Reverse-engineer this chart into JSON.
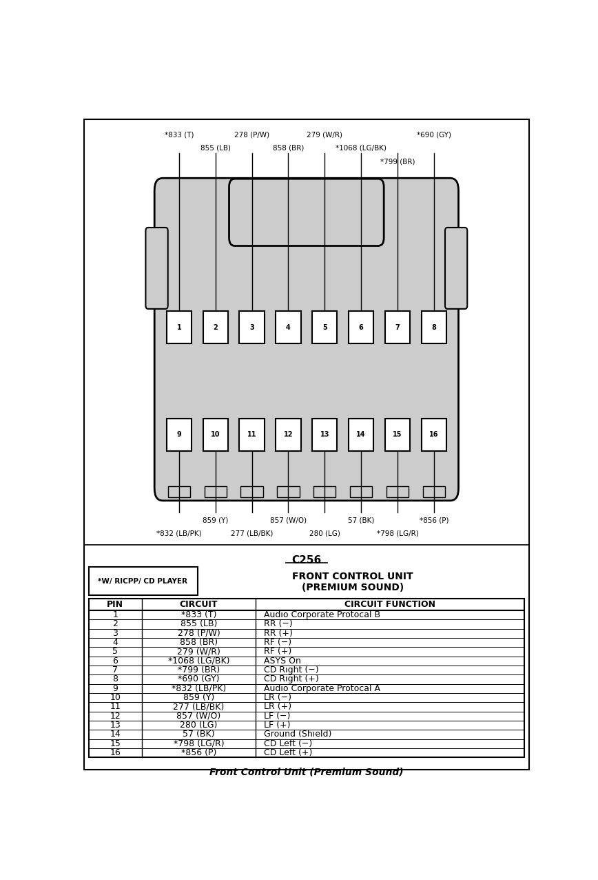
{
  "title": "Front Control Unit (Premium Sound)",
  "connector_label": "C256",
  "note_label": "*W/ RICPP/ CD PLAYER",
  "table_headers": [
    "PIN",
    "CIRCUIT",
    "CIRCUIT FUNCTION"
  ],
  "table_data": [
    [
      "1",
      "*833 (T)",
      "Audio Corporate Protocal B"
    ],
    [
      "2",
      "855 (LB)",
      "RR (−)"
    ],
    [
      "3",
      "278 (P/W)",
      "RR (+)"
    ],
    [
      "4",
      "858 (BR)",
      "RF (−)"
    ],
    [
      "5",
      "279 (W/R)",
      "RF (+)"
    ],
    [
      "6",
      "*1068 (LG/BK)",
      "ASYS On"
    ],
    [
      "7",
      "*799 (BR)",
      "CD Right (−)"
    ],
    [
      "8",
      "*690 (GY)",
      "CD Right (+)"
    ],
    [
      "9",
      "*832 (LB/PK)",
      "Audio Corporate Protocal A"
    ],
    [
      "10",
      "859 (Y)",
      "LR (−)"
    ],
    [
      "11",
      "277 (LB/BK)",
      "LR (+)"
    ],
    [
      "12",
      "857 (W/O)",
      "LF (−)"
    ],
    [
      "13",
      "280 (LG)",
      "LF (+)"
    ],
    [
      "14",
      "57 (BK)",
      "Ground (Shield)"
    ],
    [
      "15",
      "*798 (LG/R)",
      "CD Left (−)"
    ],
    [
      "16",
      "*856 (P)",
      "CD Left (+)"
    ]
  ],
  "bg_color": "#ffffff",
  "connector_fill": "#cccccc",
  "pin_fill": "#ffffff"
}
